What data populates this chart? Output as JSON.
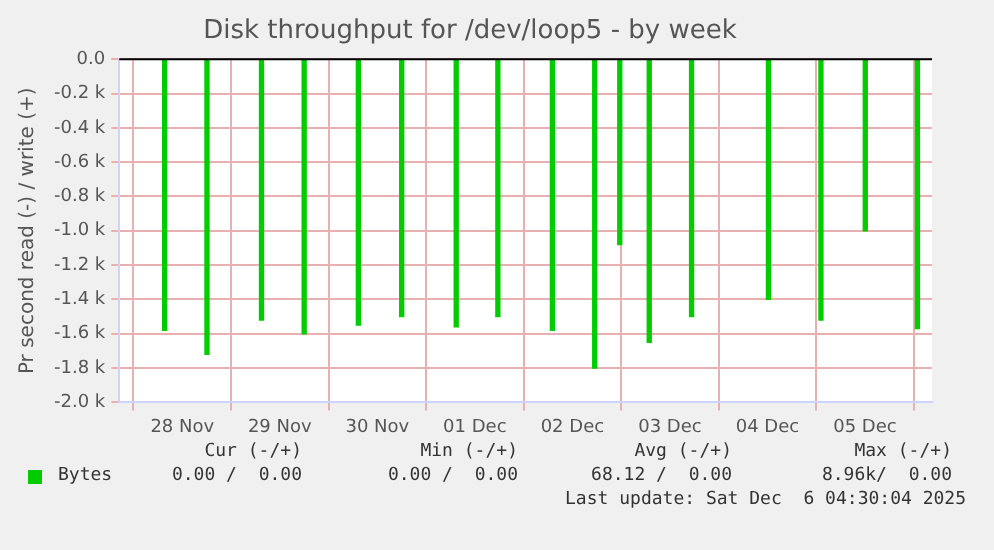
{
  "chart_data": {
    "type": "bar",
    "title": "Disk throughput for /dev/loop5 - by week",
    "ylabel": "Pr second read (-) / write (+)",
    "x": [
      "2025-11-28T07:40",
      "2025-11-28T18:05",
      "2025-11-29T07:30",
      "2025-11-29T18:00",
      "2025-11-30T07:20",
      "2025-11-30T18:00",
      "2025-12-01T07:25",
      "2025-12-01T17:40",
      "2025-12-02T07:05",
      "2025-12-02T17:30",
      "2025-12-02T23:40",
      "2025-12-03T06:55",
      "2025-12-03T17:20",
      "2025-12-04T12:15",
      "2025-12-05T01:10",
      "2025-12-05T12:05",
      "2025-12-06T00:55"
    ],
    "series": [
      {
        "name": "Bytes",
        "color": "#00cc00",
        "values": [
          -1580,
          -1720,
          -1520,
          -1600,
          -1550,
          -1500,
          -1560,
          -1500,
          -1580,
          -1800,
          -1080,
          -1650,
          -1500,
          -1400,
          -1520,
          -1000,
          -1570
        ]
      }
    ],
    "xlim": [
      "2025-11-27T20:30",
      "2025-12-06T04:30"
    ],
    "xticks": [
      {
        "value": "2025-11-28T12:00",
        "label": "28 Nov"
      },
      {
        "value": "2025-11-29T12:00",
        "label": "29 Nov"
      },
      {
        "value": "2025-11-30T12:00",
        "label": "30 Nov"
      },
      {
        "value": "2025-12-01T12:00",
        "label": "01 Dec"
      },
      {
        "value": "2025-12-02T12:00",
        "label": "02 Dec"
      },
      {
        "value": "2025-12-03T12:00",
        "label": "03 Dec"
      },
      {
        "value": "2025-12-04T12:00",
        "label": "04 Dec"
      },
      {
        "value": "2025-12-05T12:00",
        "label": "05 Dec"
      }
    ],
    "ylim": [
      -2000,
      0
    ],
    "yticks": [
      {
        "value": 0,
        "label": "0.0"
      },
      {
        "value": -200,
        "label": "-0.2 k"
      },
      {
        "value": -400,
        "label": "-0.4 k"
      },
      {
        "value": -600,
        "label": "-0.6 k"
      },
      {
        "value": -800,
        "label": "-0.8 k"
      },
      {
        "value": -1000,
        "label": "-1.0 k"
      },
      {
        "value": -1200,
        "label": "-1.2 k"
      },
      {
        "value": -1400,
        "label": "-1.4 k"
      },
      {
        "value": -1600,
        "label": "-1.6 k"
      },
      {
        "value": -1800,
        "label": "-1.8 k"
      },
      {
        "value": -2000,
        "label": "-2.0 k"
      }
    ],
    "grid": true,
    "legend": "bottom left",
    "annotations": [
      "Cur (-/+)",
      "Min (-/+)",
      "Avg (-/+)",
      "Max (-/+)",
      "0.00 /  0.00",
      "0.00 /  0.00",
      "68.12 /  0.00",
      "8.96k/  0.00",
      "Last update: Sat Dec  6 04:30:04 2025"
    ]
  }
}
